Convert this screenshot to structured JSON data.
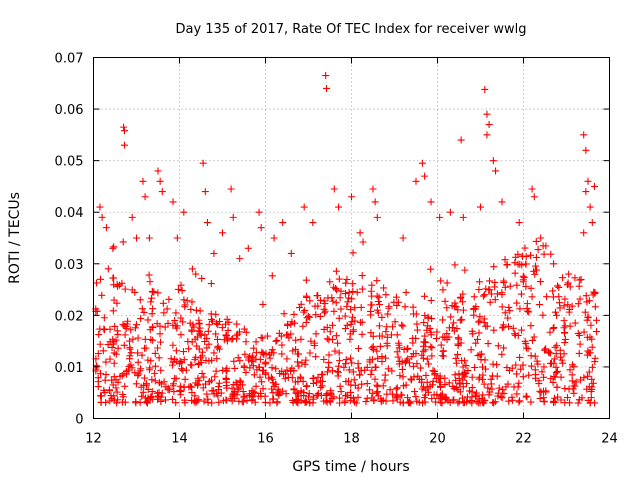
{
  "chart_data": {
    "type": "scatter",
    "title": "Day 135 of 2017, Rate Of TEC Index for receiver wwlg",
    "xlabel": "GPS time / hours",
    "ylabel": "ROTI / TECUs",
    "xlim": [
      12,
      24
    ],
    "ylim": [
      0,
      0.07
    ],
    "xticks": [
      "12",
      "14",
      "16",
      "18",
      "20",
      "22",
      "24"
    ],
    "yticks": [
      "0",
      "0.01",
      "0.02",
      "0.03",
      "0.04",
      "0.05",
      "0.06",
      "0.07"
    ],
    "grid": true,
    "marker": "+",
    "color": "#ff0000",
    "series": [
      {
        "name": "ROTI",
        "points": [
          [
            12.15,
            0.041
          ],
          [
            12.2,
            0.039
          ],
          [
            12.3,
            0.037
          ],
          [
            12.45,
            0.033
          ],
          [
            12.55,
            0.026
          ],
          [
            12.7,
            0.0565
          ],
          [
            12.72,
            0.0558
          ],
          [
            12.72,
            0.053
          ],
          [
            12.9,
            0.039
          ],
          [
            13.0,
            0.035
          ],
          [
            13.15,
            0.046
          ],
          [
            13.2,
            0.043
          ],
          [
            13.3,
            0.035
          ],
          [
            13.5,
            0.048
          ],
          [
            13.55,
            0.046
          ],
          [
            13.6,
            0.044
          ],
          [
            13.85,
            0.042
          ],
          [
            13.95,
            0.035
          ],
          [
            14.1,
            0.04
          ],
          [
            14.3,
            0.029
          ],
          [
            14.55,
            0.0495
          ],
          [
            14.6,
            0.044
          ],
          [
            14.65,
            0.038
          ],
          [
            14.8,
            0.032
          ],
          [
            15.0,
            0.036
          ],
          [
            15.2,
            0.0445
          ],
          [
            15.25,
            0.039
          ],
          [
            15.4,
            0.031
          ],
          [
            15.6,
            0.033
          ],
          [
            15.85,
            0.04
          ],
          [
            15.9,
            0.037
          ],
          [
            16.2,
            0.035
          ],
          [
            16.4,
            0.038
          ],
          [
            16.6,
            0.032
          ],
          [
            16.9,
            0.041
          ],
          [
            17.1,
            0.038
          ],
          [
            17.4,
            0.0665
          ],
          [
            17.42,
            0.064
          ],
          [
            17.6,
            0.0445
          ],
          [
            17.7,
            0.041
          ],
          [
            18.0,
            0.043
          ],
          [
            18.2,
            0.036
          ],
          [
            18.5,
            0.0445
          ],
          [
            18.55,
            0.042
          ],
          [
            18.6,
            0.039
          ],
          [
            18.8,
            0.024
          ],
          [
            19.2,
            0.035
          ],
          [
            19.5,
            0.046
          ],
          [
            19.65,
            0.0495
          ],
          [
            19.7,
            0.047
          ],
          [
            19.85,
            0.042
          ],
          [
            20.05,
            0.039
          ],
          [
            20.3,
            0.04
          ],
          [
            20.55,
            0.054
          ],
          [
            20.6,
            0.039
          ],
          [
            21.0,
            0.041
          ],
          [
            21.1,
            0.0638
          ],
          [
            21.15,
            0.059
          ],
          [
            21.15,
            0.055
          ],
          [
            21.2,
            0.057
          ],
          [
            21.3,
            0.05
          ],
          [
            21.35,
            0.048
          ],
          [
            21.5,
            0.042
          ],
          [
            21.9,
            0.038
          ],
          [
            22.2,
            0.0445
          ],
          [
            22.25,
            0.043
          ],
          [
            22.4,
            0.035
          ],
          [
            22.7,
            0.03
          ],
          [
            23.05,
            0.028
          ],
          [
            23.4,
            0.055
          ],
          [
            23.45,
            0.052
          ],
          [
            23.5,
            0.046
          ],
          [
            23.45,
            0.044
          ],
          [
            23.55,
            0.041
          ],
          [
            23.6,
            0.038
          ],
          [
            23.4,
            0.036
          ],
          [
            23.65,
            0.045
          ]
        ]
      }
    ]
  }
}
